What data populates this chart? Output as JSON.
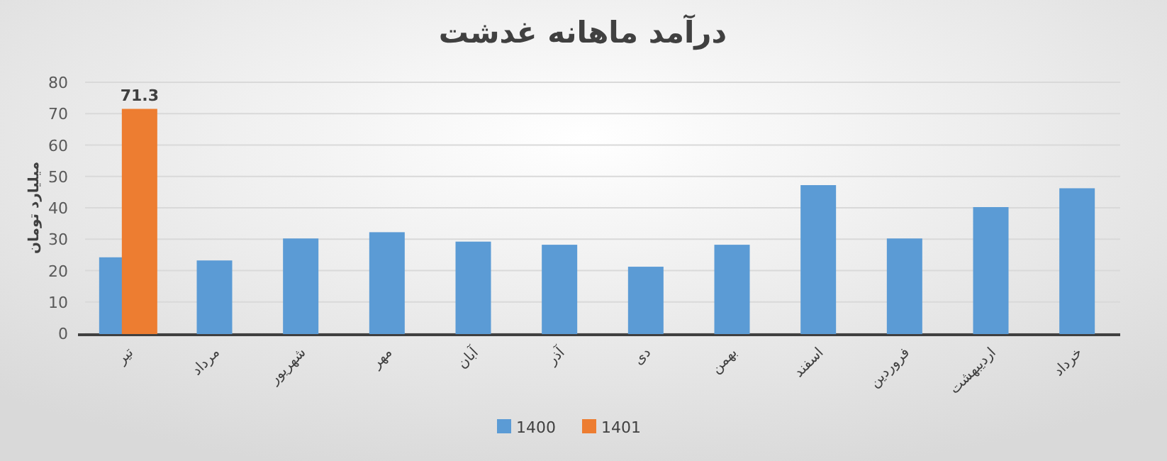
{
  "chart_data": {
    "type": "bar",
    "title": "درآمد ماهانه غدشت",
    "ylabel": "میلیارد تومان",
    "categories": [
      "تیر",
      "مرداد",
      "شهریور",
      "مهر",
      "آبان",
      "آذر",
      "دی",
      "بهمن",
      "اسفند",
      "فروردین",
      "اردیبهشت",
      "خرداد"
    ],
    "series": [
      {
        "name": "1400",
        "color": "#5b9bd5",
        "values": [
          24,
          23,
          30,
          32,
          29,
          28,
          21,
          28,
          47,
          30,
          40,
          46
        ]
      },
      {
        "name": "1401",
        "color": "#ed7d31",
        "values": [
          71.3,
          null,
          null,
          null,
          null,
          null,
          null,
          null,
          null,
          null,
          null,
          null
        ],
        "value_labels": [
          "71.3",
          null,
          null,
          null,
          null,
          null,
          null,
          null,
          null,
          null,
          null,
          null
        ]
      }
    ],
    "ylim": [
      0,
      80
    ],
    "yticks": [
      0,
      10,
      20,
      30,
      40,
      50,
      60,
      70,
      80
    ],
    "grid": "y",
    "legend": "bottom"
  }
}
